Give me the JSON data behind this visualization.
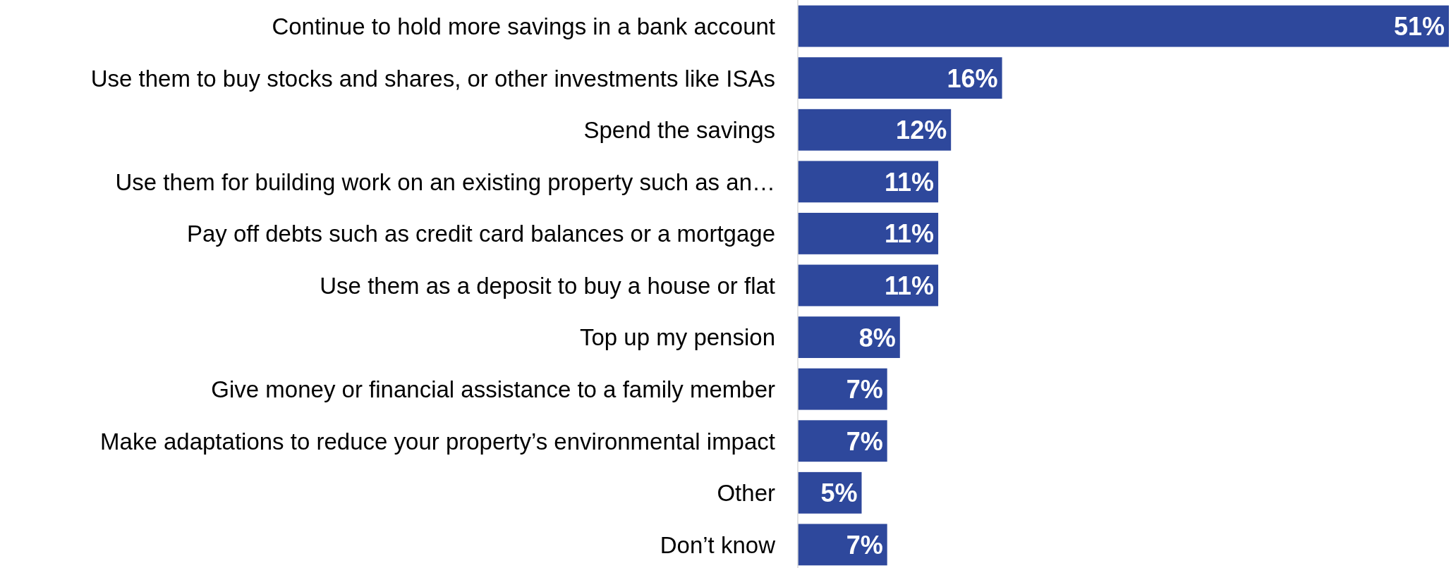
{
  "chart_data": {
    "type": "bar",
    "orientation": "horizontal",
    "categories": [
      "Continue to hold more savings in a bank account",
      "Use them to buy stocks and shares, or other investments like ISAs",
      "Spend the savings",
      "Use them for building work on an existing property such as an…",
      "Pay off debts such as credit card balances or a mortgage",
      "Use them as a deposit to buy a house or flat",
      "Top up my pension",
      "Give money or financial assistance to a family member",
      "Make adaptations to reduce your property’s environmental impact",
      "Other",
      "Don’t know"
    ],
    "values": [
      51,
      16,
      12,
      11,
      11,
      11,
      8,
      7,
      7,
      5,
      7
    ],
    "value_labels": [
      "51%",
      "16%",
      "12%",
      "11%",
      "11%",
      "11%",
      "8%",
      "7%",
      "7%",
      "5%",
      "7%"
    ],
    "color": "#2e489c"
  }
}
